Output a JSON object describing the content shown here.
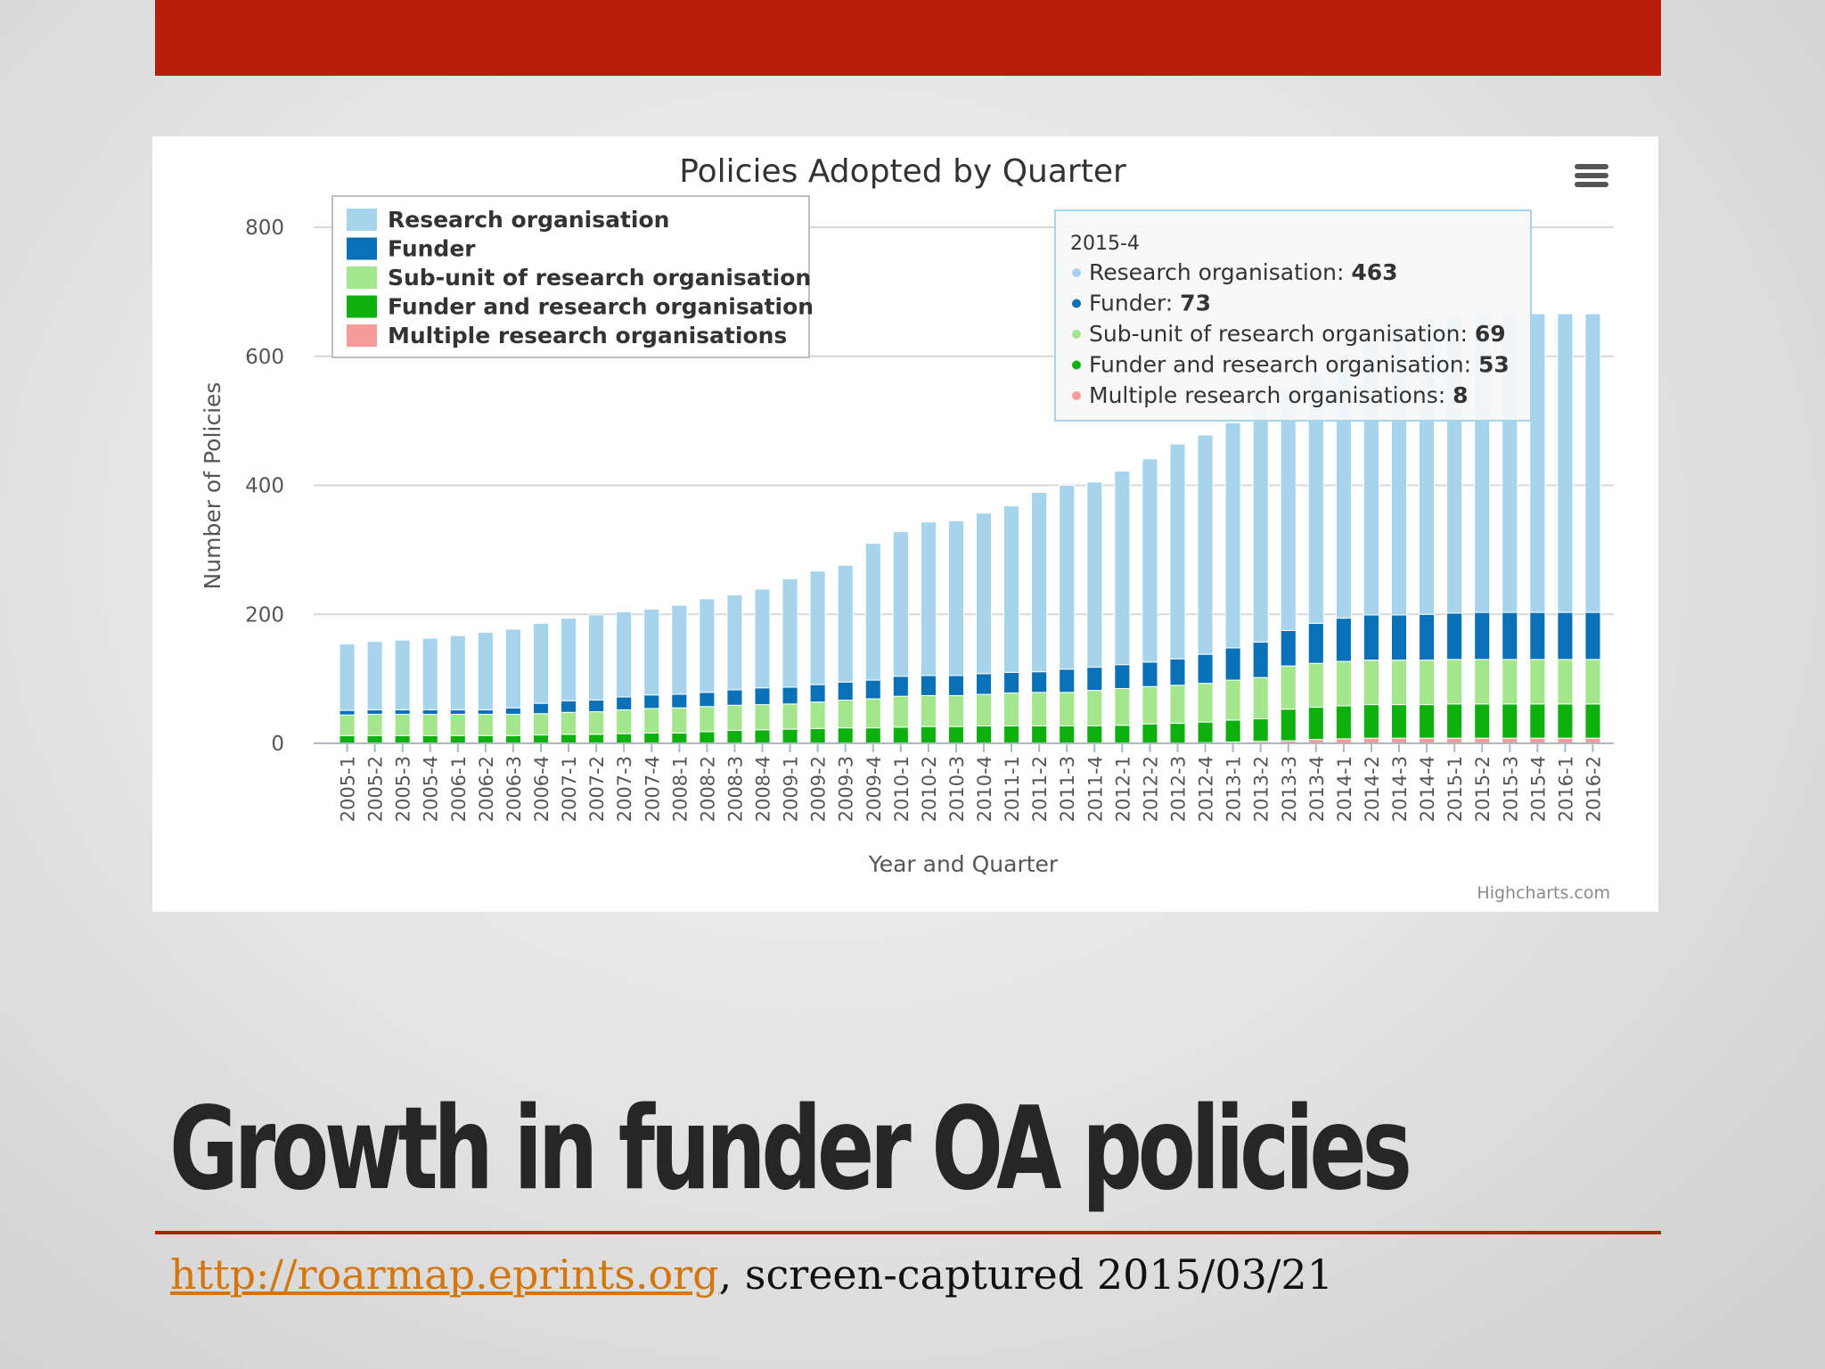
{
  "slide": {
    "title": "Growth in funder OA policies",
    "caption_link": "http://roarmap.eprints.org",
    "caption_rest": ", screen-captured 2015/03/21"
  },
  "colors": {
    "accent_red": "#b81c0a",
    "link_orange": "#d4760a",
    "research_organisation": "#a6d4ec",
    "funder": "#0a70b8",
    "subunit": "#a3e68c",
    "funder_and_research": "#0db00d",
    "multiple": "#f59b9b"
  },
  "chart_data": {
    "type": "bar",
    "stacked": true,
    "title": "Policies Adopted by Quarter",
    "xlabel": "Year and Quarter",
    "ylabel": "Number of Policies",
    "ylim": [
      0,
      800
    ],
    "yticks": [
      0,
      200,
      400,
      600,
      800
    ],
    "grid": true,
    "legend_position": "top-left",
    "credit": "Highcharts.com",
    "menu_icon": "hamburger-menu-icon",
    "categories": [
      "2005-1",
      "2005-2",
      "2005-3",
      "2005-4",
      "2006-1",
      "2006-2",
      "2006-3",
      "2006-4",
      "2007-1",
      "2007-2",
      "2007-3",
      "2007-4",
      "2008-1",
      "2008-2",
      "2008-3",
      "2008-4",
      "2009-1",
      "2009-2",
      "2009-3",
      "2009-4",
      "2010-1",
      "2010-2",
      "2010-3",
      "2010-4",
      "2011-1",
      "2011-2",
      "2011-3",
      "2011-4",
      "2012-1",
      "2012-2",
      "2012-3",
      "2012-4",
      "2013-1",
      "2013-2",
      "2013-3",
      "2013-4",
      "2014-1",
      "2014-2",
      "2014-3",
      "2014-4",
      "2015-1",
      "2015-2",
      "2015-3",
      "2015-4",
      "2016-1",
      "2016-2"
    ],
    "series": [
      {
        "name": "Multiple research organisations",
        "color": "#f59b9b",
        "values": [
          0,
          0,
          0,
          0,
          0,
          0,
          0,
          0,
          0,
          0,
          0,
          0,
          0,
          0,
          0,
          0,
          0,
          0,
          0,
          0,
          0,
          0,
          0,
          0,
          0,
          0,
          0,
          0,
          0,
          0,
          0,
          1,
          2,
          3,
          4,
          6,
          7,
          8,
          8,
          8,
          8,
          8,
          8,
          8,
          8,
          8
        ]
      },
      {
        "name": "Funder and research organisation",
        "color": "#0db00d",
        "values": [
          12,
          12,
          12,
          12,
          12,
          12,
          12,
          13,
          14,
          14,
          15,
          16,
          16,
          18,
          20,
          21,
          22,
          23,
          24,
          24,
          25,
          26,
          26,
          27,
          27,
          27,
          27,
          27,
          28,
          30,
          31,
          32,
          34,
          35,
          49,
          50,
          51,
          52,
          52,
          52,
          53,
          53,
          53,
          53,
          53,
          53
        ]
      },
      {
        "name": "Sub-unit of research organisation",
        "color": "#a3e68c",
        "values": [
          32,
          33,
          33,
          33,
          33,
          33,
          33,
          33,
          34,
          35,
          37,
          38,
          39,
          39,
          39,
          39,
          39,
          41,
          43,
          45,
          48,
          48,
          48,
          49,
          51,
          52,
          52,
          55,
          57,
          58,
          59,
          60,
          62,
          64,
          67,
          68,
          69,
          69,
          69,
          69,
          69,
          69,
          69,
          69,
          69,
          69
        ]
      },
      {
        "name": "Funder",
        "color": "#0a70b8",
        "values": [
          7,
          7,
          7,
          7,
          7,
          7,
          10,
          16,
          18,
          18,
          20,
          21,
          21,
          22,
          24,
          26,
          26,
          27,
          28,
          29,
          31,
          31,
          31,
          32,
          32,
          32,
          36,
          36,
          37,
          38,
          41,
          45,
          50,
          55,
          55,
          62,
          67,
          70,
          70,
          71,
          72,
          73,
          73,
          73,
          73,
          73
        ]
      },
      {
        "name": "Research organisation",
        "color": "#a6d4ec",
        "values": [
          103,
          106,
          108,
          111,
          115,
          120,
          122,
          124,
          128,
          132,
          132,
          133,
          138,
          145,
          147,
          153,
          168,
          176,
          181,
          212,
          224,
          238,
          240,
          249,
          258,
          278,
          285,
          287,
          300,
          315,
          333,
          340,
          349,
          365,
          375,
          390,
          410,
          430,
          450,
          458,
          460,
          463,
          463,
          463,
          463,
          463
        ]
      }
    ],
    "tooltip": {
      "header": "2015-4",
      "rows": [
        {
          "label": "Research organisation: ",
          "value": "463",
          "color": "#a6d4ec"
        },
        {
          "label": "Funder: ",
          "value": "73",
          "color": "#0a70b8"
        },
        {
          "label": "Sub-unit of research organisation: ",
          "value": "69",
          "color": "#a3e68c"
        },
        {
          "label": "Funder and research organisation: ",
          "value": "53",
          "color": "#0db00d"
        },
        {
          "label": "Multiple research organisations: ",
          "value": "8",
          "color": "#f59b9b"
        }
      ]
    },
    "legend": [
      "Research organisation",
      "Funder",
      "Sub-unit of research organisation",
      "Funder and research organisation",
      "Multiple research organisations"
    ]
  }
}
